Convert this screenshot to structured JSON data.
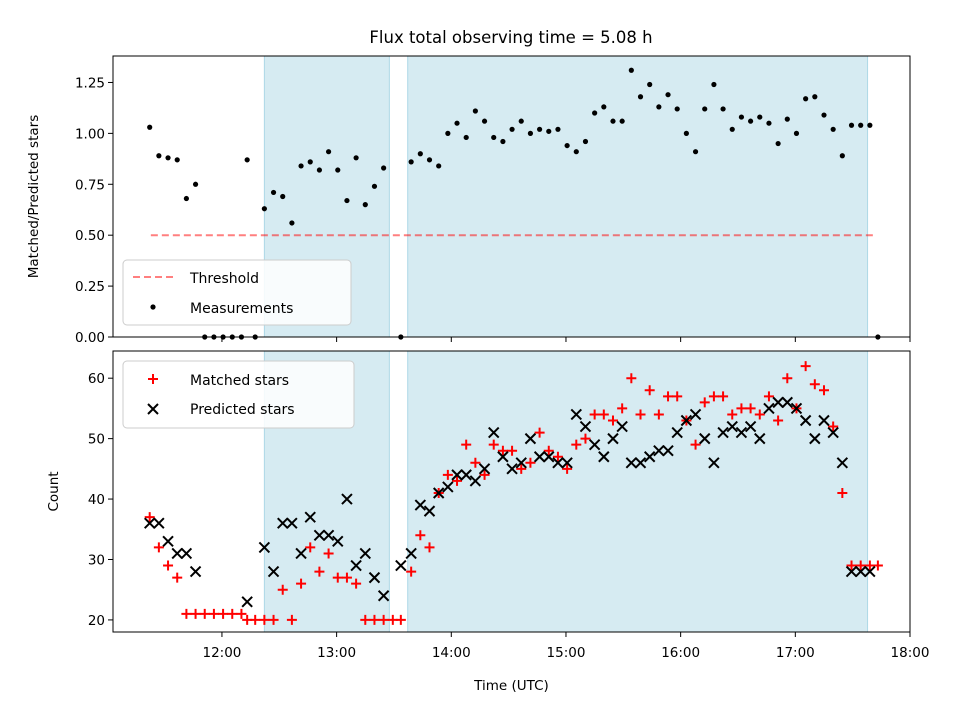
{
  "title": "Flux total observing time = 5.08 h",
  "colors": {
    "shade": "#add8e6",
    "threshold": "#ff0000",
    "measurement": "#000000",
    "matched": "#ff0000",
    "predicted": "#000000"
  },
  "chart_data": [
    {
      "type": "scatter",
      "panel": "top",
      "ylabel": "Matched/Predicted stars",
      "ylim": [
        0,
        1.38
      ],
      "xlim": [
        11.05,
        18.0
      ],
      "yticks": [
        "0.00",
        "0.25",
        "0.50",
        "0.75",
        "1.00",
        "1.25"
      ],
      "ytick_values": [
        0,
        0.25,
        0.5,
        0.75,
        1.0,
        1.25
      ],
      "shaded_intervals": [
        [
          12.37,
          13.46
        ],
        [
          13.62,
          17.63
        ]
      ],
      "threshold": {
        "name": "Threshold",
        "value": 0.5,
        "x_range": [
          11.38,
          17.7
        ]
      },
      "legend": {
        "position": "bottom-left",
        "entries": [
          "Threshold",
          "Measurements"
        ]
      },
      "series": [
        {
          "name": "Measurements",
          "x": [
            11.37,
            11.45,
            11.53,
            11.61,
            11.69,
            11.77,
            11.85,
            11.93,
            12.01,
            12.09,
            12.17,
            12.22,
            12.29,
            12.37,
            12.45,
            12.53,
            12.61,
            12.69,
            12.77,
            12.85,
            12.93,
            13.01,
            13.09,
            13.17,
            13.25,
            13.33,
            13.41,
            13.56,
            13.65,
            13.73,
            13.81,
            13.89,
            13.97,
            14.05,
            14.13,
            14.21,
            14.29,
            14.37,
            14.45,
            14.53,
            14.61,
            14.69,
            14.77,
            14.85,
            14.93,
            15.01,
            15.09,
            15.17,
            15.25,
            15.33,
            15.41,
            15.49,
            15.57,
            15.65,
            15.73,
            15.81,
            15.89,
            15.97,
            16.05,
            16.13,
            16.21,
            16.29,
            16.37,
            16.45,
            16.53,
            16.61,
            16.69,
            16.77,
            16.85,
            16.93,
            17.01,
            17.09,
            17.17,
            17.25,
            17.33,
            17.41,
            17.49,
            17.57,
            17.65,
            17.72
          ],
          "y": [
            1.03,
            0.89,
            0.88,
            0.87,
            0.68,
            0.75,
            0.0,
            0.0,
            0.0,
            0.0,
            0.0,
            0.87,
            0.0,
            0.63,
            0.71,
            0.69,
            0.56,
            0.84,
            0.86,
            0.82,
            0.91,
            0.82,
            0.67,
            0.88,
            0.65,
            0.74,
            0.83,
            0.0,
            0.86,
            0.9,
            0.87,
            0.84,
            1.0,
            1.05,
            0.98,
            1.11,
            1.06,
            0.98,
            0.96,
            1.02,
            1.06,
            1.0,
            1.02,
            1.01,
            1.02,
            0.94,
            0.91,
            0.96,
            1.1,
            1.13,
            1.06,
            1.06,
            1.31,
            1.18,
            1.24,
            1.13,
            1.19,
            1.12,
            1.0,
            0.91,
            1.12,
            1.24,
            1.12,
            1.02,
            1.08,
            1.06,
            1.08,
            1.05,
            0.95,
            1.07,
            1.0,
            1.17,
            1.18,
            1.09,
            1.02,
            0.89,
            1.04,
            1.04,
            1.04,
            0.0
          ]
        }
      ]
    },
    {
      "type": "scatter",
      "panel": "bottom",
      "xlabel": "Time (UTC)",
      "ylabel": "Count",
      "ylim": [
        18,
        64.5
      ],
      "xlim": [
        11.05,
        18.0
      ],
      "yticks": [
        "20",
        "30",
        "40",
        "50",
        "60"
      ],
      "ytick_values": [
        20,
        30,
        40,
        50,
        60
      ],
      "xticks": [
        "12:00",
        "13:00",
        "14:00",
        "15:00",
        "16:00",
        "17:00",
        "18:00"
      ],
      "xtick_values": [
        12,
        13,
        14,
        15,
        16,
        17,
        18
      ],
      "shaded_intervals": [
        [
          12.37,
          13.46
        ],
        [
          13.62,
          17.63
        ]
      ],
      "legend": {
        "position": "top-left",
        "entries": [
          "Matched stars",
          "Predicted stars"
        ]
      },
      "series": [
        {
          "name": "Matched stars",
          "marker": "plus",
          "x": [
            11.37,
            11.45,
            11.53,
            11.61,
            11.69,
            11.77,
            11.85,
            11.93,
            12.01,
            12.09,
            12.17,
            12.22,
            12.29,
            12.37,
            12.45,
            12.53,
            12.61,
            12.69,
            12.77,
            12.85,
            12.93,
            13.01,
            13.09,
            13.17,
            13.25,
            13.33,
            13.41,
            13.49,
            13.56,
            13.65,
            13.73,
            13.81,
            13.89,
            13.97,
            14.05,
            14.13,
            14.21,
            14.29,
            14.37,
            14.45,
            14.53,
            14.61,
            14.69,
            14.77,
            14.85,
            14.93,
            15.01,
            15.09,
            15.17,
            15.25,
            15.33,
            15.41,
            15.49,
            15.57,
            15.65,
            15.73,
            15.81,
            15.89,
            15.97,
            16.05,
            16.13,
            16.21,
            16.29,
            16.37,
            16.45,
            16.53,
            16.61,
            16.69,
            16.77,
            16.85,
            16.93,
            17.01,
            17.09,
            17.17,
            17.25,
            17.33,
            17.41,
            17.49,
            17.57,
            17.65,
            17.72
          ],
          "y": [
            37,
            32,
            29,
            27,
            21,
            21,
            21,
            21,
            21,
            21,
            21,
            20,
            20,
            20,
            20,
            25,
            20,
            26,
            32,
            28,
            31,
            27,
            27,
            26,
            20,
            20,
            20,
            20,
            20,
            28,
            34,
            32,
            41,
            44,
            43,
            49,
            46,
            44,
            49,
            48,
            48,
            45,
            46,
            51,
            48,
            47,
            45,
            49,
            50,
            54,
            54,
            53,
            55,
            60,
            54,
            58,
            54,
            57,
            57,
            53,
            49,
            56,
            57,
            57,
            54,
            55,
            55,
            54,
            57,
            53,
            60,
            55,
            62,
            59,
            58,
            52,
            41,
            29,
            29,
            29,
            29
          ]
        },
        {
          "name": "Predicted stars",
          "marker": "x",
          "x": [
            11.37,
            11.45,
            11.53,
            11.61,
            11.69,
            11.77,
            12.22,
            12.37,
            12.45,
            12.53,
            12.61,
            12.69,
            12.77,
            12.85,
            12.93,
            13.01,
            13.09,
            13.17,
            13.25,
            13.33,
            13.41,
            13.56,
            13.65,
            13.73,
            13.81,
            13.89,
            13.97,
            14.05,
            14.13,
            14.21,
            14.29,
            14.37,
            14.45,
            14.53,
            14.61,
            14.69,
            14.77,
            14.85,
            14.93,
            15.01,
            15.09,
            15.17,
            15.25,
            15.33,
            15.41,
            15.49,
            15.57,
            15.65,
            15.73,
            15.81,
            15.89,
            15.97,
            16.05,
            16.13,
            16.21,
            16.29,
            16.37,
            16.45,
            16.53,
            16.61,
            16.69,
            16.77,
            16.85,
            16.93,
            17.01,
            17.09,
            17.17,
            17.25,
            17.33,
            17.41,
            17.49,
            17.57,
            17.65
          ],
          "y": [
            36,
            36,
            33,
            31,
            31,
            28,
            23,
            32,
            28,
            36,
            36,
            31,
            37,
            34,
            34,
            33,
            40,
            29,
            31,
            27,
            24,
            29,
            31,
            39,
            38,
            41,
            42,
            44,
            44,
            43,
            45,
            51,
            47,
            45,
            46,
            50,
            47,
            47,
            46,
            46,
            54,
            52,
            49,
            47,
            50,
            52,
            46,
            46,
            47,
            48,
            48,
            51,
            53,
            54,
            50,
            46,
            51,
            52,
            51,
            52,
            50,
            55,
            56,
            56,
            55,
            53,
            50,
            53,
            51,
            46,
            28,
            28,
            28
          ]
        }
      ]
    }
  ]
}
